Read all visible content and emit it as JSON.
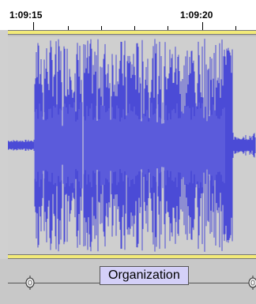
{
  "timeline": {
    "labels": [
      "1:09:15",
      "1:09:20"
    ]
  },
  "label_track": {
    "label_text": "Organization"
  },
  "colors": {
    "waveform": "#4b4bd6",
    "waveform_rms": "#6b6be0",
    "selection_bar": "#f2ea78",
    "label_fill": "#d4d0f8",
    "track_bg": "#cfcfcf"
  },
  "icons": {
    "label_handle_left": "circle-handle-icon",
    "label_handle_right": "circle-handle-icon"
  }
}
